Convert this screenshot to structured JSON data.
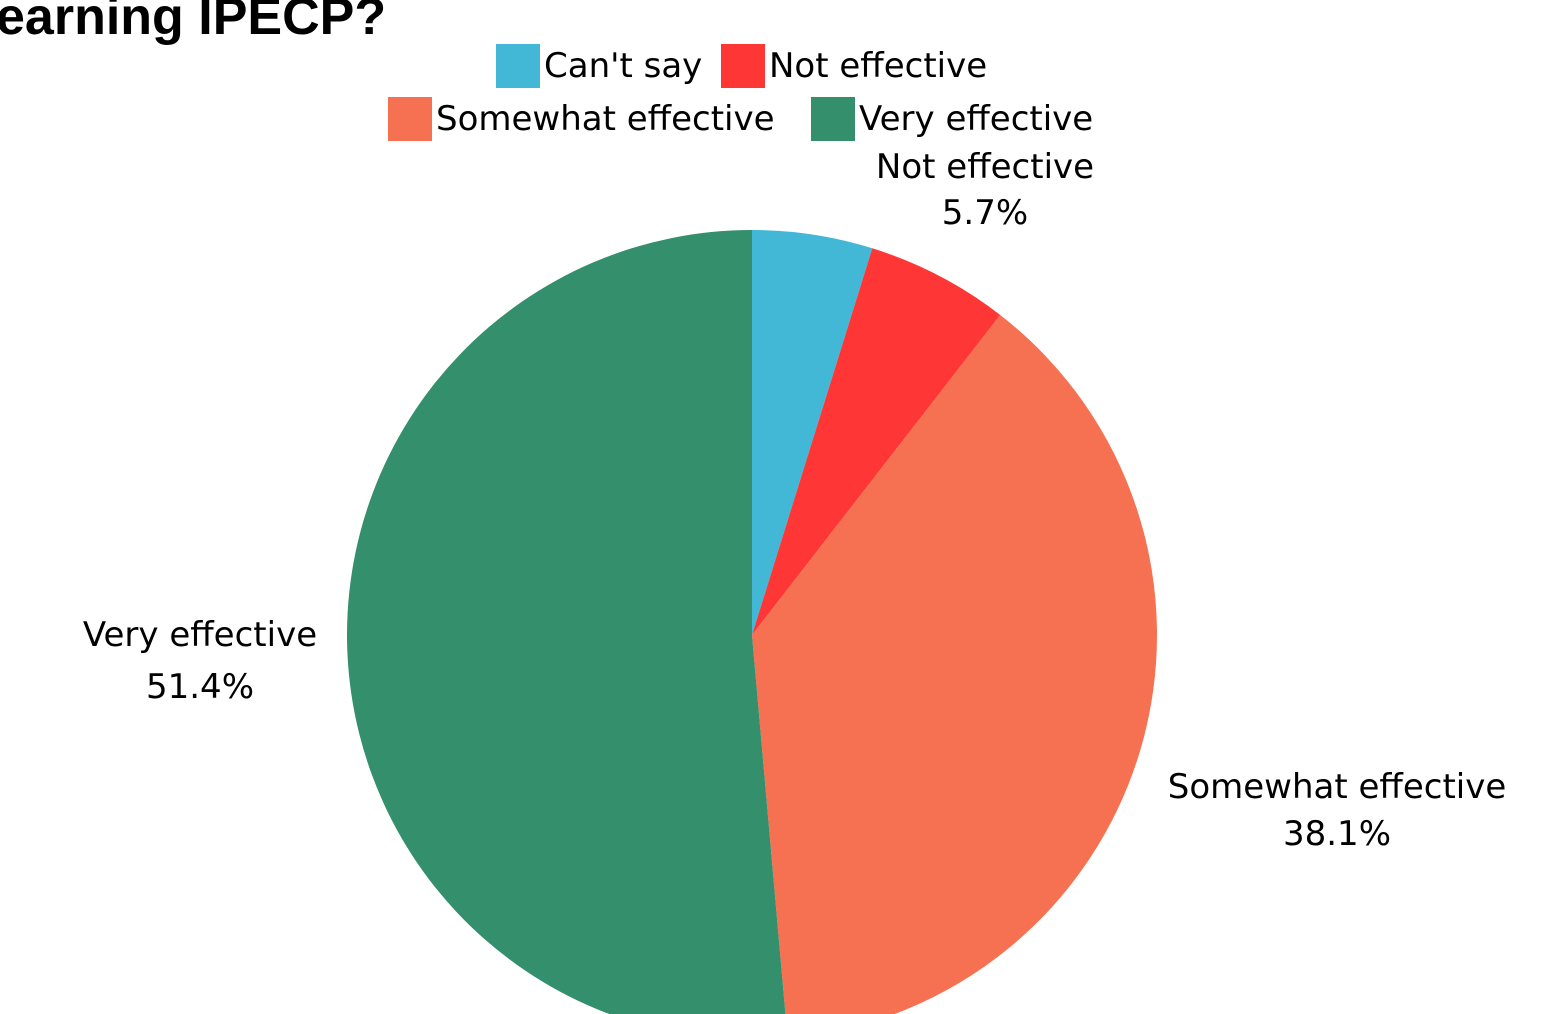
{
  "chart_data": {
    "type": "pie",
    "title": "earning IPECP?",
    "categories": [
      "Can't say",
      "Not effective",
      "Somewhat effective",
      "Very effective"
    ],
    "values": [
      4.8,
      5.7,
      38.1,
      51.4
    ],
    "data_labels": [
      "",
      "5.7%",
      "38.1%",
      "51.4%"
    ],
    "colors": [
      "#43b7d6",
      "#ff3636",
      "#f57152",
      "#338f6c"
    ],
    "legend": {
      "placement": "top-center",
      "entries": [
        "Can't say",
        "Not effective",
        "Somewhat effective",
        "Very effective"
      ]
    },
    "start_angle": "12 o'clock",
    "direction": "clockwise"
  }
}
